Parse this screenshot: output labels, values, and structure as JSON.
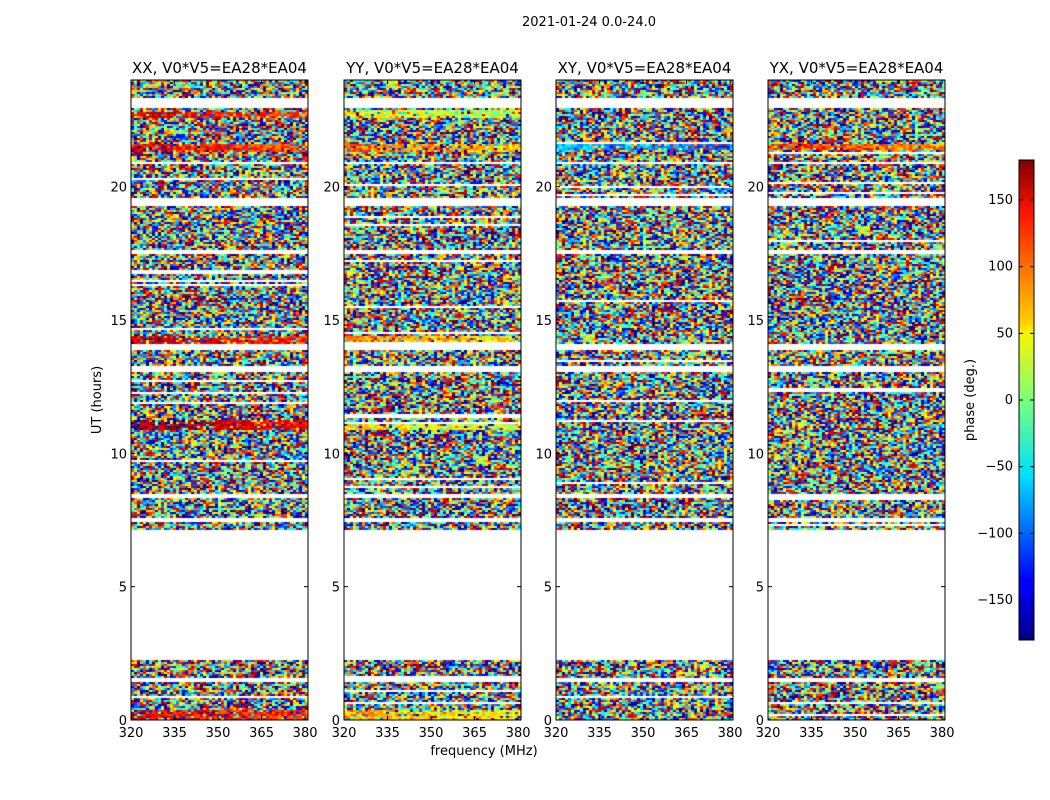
{
  "figure_title": "2021-01-24 0.0-24.0",
  "x_axis_label": "frequency (MHz)",
  "y_axis_label": "UT (hours)",
  "colorbar_label": "phase (deg.)",
  "chart_data": {
    "type": "heatmap",
    "title": "2021-01-24 0.0-24.0",
    "xlabel": "frequency (MHz)",
    "ylabel": "UT (hours)",
    "xlim": [
      320,
      381
    ],
    "ylim": [
      0,
      24
    ],
    "x_ticks": [
      "320",
      "335",
      "350",
      "365",
      "380"
    ],
    "x_tick_values": [
      320,
      335,
      350,
      365,
      380
    ],
    "y_ticks": [
      "0",
      "5",
      "10",
      "15",
      "20"
    ],
    "y_tick_values": [
      0,
      5,
      10,
      15,
      20
    ],
    "colorbar": {
      "label": "phase (deg.)",
      "range": [
        -180,
        180
      ],
      "ticks": [
        "−150",
        "−100",
        "−50",
        "0",
        "50",
        "100",
        "150"
      ],
      "tick_values": [
        -150,
        -100,
        -50,
        0,
        50,
        100,
        150
      ],
      "colormap": "jet"
    },
    "data_gaps_ut_hours": [
      [
        2.25,
        7.15
      ],
      [
        1.45,
        1.6
      ],
      [
        7.4,
        7.55
      ],
      [
        8.35,
        8.5
      ],
      [
        13.05,
        13.25
      ],
      [
        13.9,
        14.1
      ],
      [
        17.45,
        17.65
      ],
      [
        19.3,
        19.55
      ],
      [
        20.85,
        20.95
      ],
      [
        22.95,
        23.3
      ]
    ],
    "panels": [
      {
        "title": "XX, V0*V5=EA28*EA04",
        "coherent_bands_ut_hours": [
          [
            0,
            0.4,
            150
          ],
          [
            10.9,
            11.25,
            170
          ],
          [
            14.1,
            14.4,
            160
          ],
          [
            21.3,
            21.6,
            140
          ],
          [
            22.6,
            22.8,
            150
          ]
        ]
      },
      {
        "title": "YY, V0*V5=EA28*EA04",
        "coherent_bands_ut_hours": [
          [
            0,
            0.4,
            80
          ],
          [
            10.9,
            11.2,
            60
          ],
          [
            14.1,
            14.4,
            90
          ],
          [
            21.3,
            21.6,
            100
          ],
          [
            22.6,
            22.9,
            50
          ]
        ]
      },
      {
        "title": "XY, V0*V5=EA28*EA04",
        "coherent_bands_ut_hours": [
          [
            21.4,
            21.6,
            -60
          ]
        ]
      },
      {
        "title": "YX, V0*V5=EA28*EA04",
        "coherent_bands_ut_hours": [
          [
            21.4,
            21.6,
            120
          ]
        ]
      }
    ]
  }
}
